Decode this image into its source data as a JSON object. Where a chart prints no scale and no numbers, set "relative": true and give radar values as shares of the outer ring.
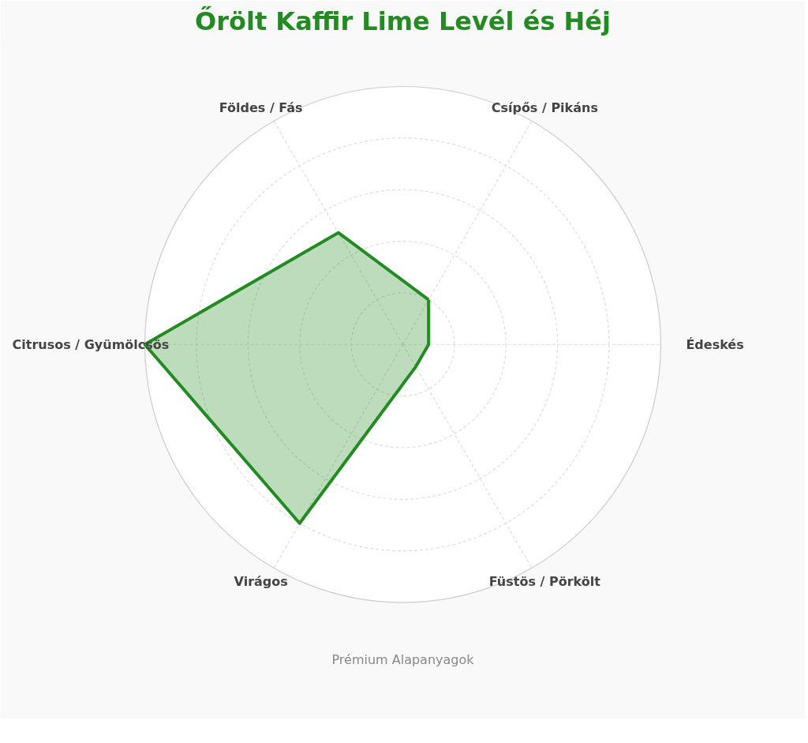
{
  "chart_data": {
    "type": "radar",
    "title": "Őrölt Kaffir Lime Levél és Héj",
    "categories": [
      "Csípős / Pikáns",
      "Édeskés",
      "Füstös / Pörkölt",
      "Virágos",
      "Citrusos / Gyümölcsös",
      "Földes / Fás"
    ],
    "relative": true,
    "grid": true,
    "legend": false,
    "marker": "none",
    "line_style": "solid",
    "series": [
      {
        "color": "#228b22",
        "values": [
          0.2,
          0.1,
          0.1,
          0.8,
          1.0,
          0.5
        ]
      }
    ],
    "annotations": [
      "Prémium Alapanyagok"
    ]
  }
}
